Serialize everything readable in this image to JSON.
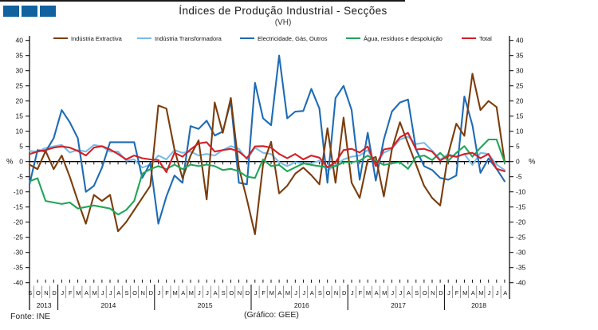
{
  "header": {
    "title": "Índices de Produção Industrial - Secções",
    "subtitle": "(VH)"
  },
  "logo": {
    "color": "#11629E",
    "squares": 3
  },
  "footer": {
    "source": "Fonte: INE",
    "credit": "(Gráfico: GEE)"
  },
  "chart_data": {
    "type": "line",
    "title": "Índices de Produção Industrial - Secções",
    "subtitle": "(VH)",
    "ylabel": "%",
    "ylim": [
      -40,
      40
    ],
    "ytick_step": 5,
    "grid": false,
    "legend_position": "top",
    "x_months": [
      "S",
      "O",
      "N",
      "D",
      "J",
      "F",
      "M",
      "A",
      "M",
      "J",
      "J",
      "A",
      "S",
      "O",
      "N",
      "D",
      "J",
      "F",
      "M",
      "A",
      "M",
      "J",
      "J",
      "A",
      "S",
      "O",
      "N",
      "D",
      "J",
      "F",
      "M",
      "A",
      "M",
      "J",
      "J",
      "A",
      "S",
      "O",
      "N",
      "D",
      "J",
      "F",
      "M",
      "A",
      "M",
      "J",
      "J",
      "A",
      "S",
      "O",
      "N",
      "D",
      "J",
      "F",
      "M",
      "A",
      "M",
      "J",
      "J",
      "A"
    ],
    "year_groups": [
      {
        "label": "2013",
        "start": 0,
        "count": 4
      },
      {
        "label": "2014",
        "start": 4,
        "count": 12
      },
      {
        "label": "2015",
        "start": 16,
        "count": 12
      },
      {
        "label": "2016",
        "start": 28,
        "count": 12
      },
      {
        "label": "2017",
        "start": 40,
        "count": 12
      },
      {
        "label": "2018",
        "start": 52,
        "count": 8
      }
    ],
    "series": [
      {
        "name": "Indústria Extractiva",
        "color": "#7B3D0C",
        "values": [
          -1,
          -2.5,
          3.5,
          -2.5,
          2,
          -5,
          -13,
          -20.5,
          -11,
          -13,
          -11,
          -23,
          -20,
          -16,
          -12,
          -8,
          18.5,
          17.5,
          4,
          -5.5,
          2,
          7,
          -12.5,
          19.5,
          9.5,
          21,
          -2,
          -12.5,
          -24,
          -1,
          6.5,
          -10.5,
          -8,
          -4,
          -2,
          -4.5,
          -7.5,
          11,
          -7,
          14.5,
          -7,
          -12,
          0.5,
          1.5,
          -11.5,
          4,
          13,
          6,
          -1,
          -8,
          -12,
          -14.5,
          2.5,
          12.5,
          8.5,
          29,
          17,
          20,
          18,
          0
        ]
      },
      {
        "name": "Indústria Transformadora",
        "color": "#79BDE8",
        "values": [
          3.5,
          3.3,
          4.5,
          5,
          5.5,
          3,
          3.8,
          3.3,
          5.5,
          5,
          3.3,
          3.3,
          0.3,
          0.7,
          -2,
          -1,
          2,
          0.7,
          3.8,
          2.9,
          3.3,
          2,
          2.5,
          2,
          3.8,
          5.1,
          4.2,
          0.7,
          4.6,
          2.9,
          2.5,
          -0.2,
          -1.5,
          -0.2,
          -0.6,
          -0.6,
          0.3,
          -3,
          -1.1,
          0.7,
          1.6,
          2,
          3.8,
          -1.1,
          2.9,
          4.2,
          7.3,
          8.2,
          5.8,
          6.2,
          3.6,
          0.7,
          2.5,
          1.5,
          2.5,
          -1.1,
          2.9,
          2.5,
          -1,
          -2.8
        ]
      },
      {
        "name": "Electricidade, Gás, Outros",
        "color": "#1F6BB4",
        "values": [
          -7.5,
          3.8,
          3.3,
          7.7,
          17,
          13,
          7.7,
          -10,
          -8,
          -2,
          6.4,
          6.4,
          6.4,
          6.4,
          -5.4,
          -0.5,
          -20.5,
          -11.5,
          -4.6,
          -7,
          11.7,
          10.8,
          13.5,
          8.6,
          9.9,
          20,
          -7,
          -7.5,
          26,
          14.3,
          12,
          35,
          14.3,
          16.5,
          16.7,
          24,
          17.5,
          -7,
          21,
          25,
          17,
          -6,
          9.5,
          -6.3,
          7.3,
          16.5,
          19.5,
          20.5,
          4,
          -1.5,
          -2.8,
          -5.4,
          -6,
          -4.6,
          21.5,
          12,
          -3.7,
          1,
          -2.4,
          -6.5
        ]
      },
      {
        "name": "Água, resíduos e despoluição",
        "color": "#21A558",
        "values": [
          -6.5,
          -5.5,
          -13,
          -13.5,
          -14,
          -13.5,
          -15.5,
          -15,
          -14.5,
          -15,
          -15.5,
          -17.5,
          -16,
          -13,
          -4,
          -2.5,
          -1.5,
          -2.5,
          -1,
          -2.5,
          -1,
          -1.5,
          -1,
          -1.5,
          -2.8,
          -2.4,
          -3.2,
          -5,
          -5.4,
          0.7,
          -1.5,
          -1.1,
          -3.2,
          -1.9,
          -0.6,
          -1.1,
          -1.5,
          -1.9,
          -1.5,
          -0.2,
          -0.2,
          0.3,
          2,
          0.3,
          -1.1,
          -0.6,
          -0.2,
          -2.4,
          1.5,
          2,
          0.5,
          2.9,
          0.3,
          2.9,
          5.1,
          1.6,
          4.6,
          7.3,
          7.3,
          -0.2
        ]
      },
      {
        "name": "Total",
        "color": "#D41F26",
        "values": [
          2.5,
          3.3,
          3.8,
          4.6,
          5,
          4.6,
          3.5,
          2,
          4.6,
          5.1,
          4,
          2.5,
          0.7,
          2,
          1.1,
          0.7,
          0.5,
          -3.5,
          2.9,
          1.6,
          4,
          6,
          6.4,
          3.3,
          3.8,
          4.2,
          3.3,
          1.1,
          5,
          5.1,
          4.6,
          2.5,
          1.1,
          2.5,
          0.7,
          2,
          1.3,
          -1.9,
          -0.2,
          3.8,
          4.2,
          3,
          5,
          -1.5,
          4,
          4.5,
          8,
          9.5,
          4,
          4.2,
          3.3,
          0.3,
          2,
          1.6,
          2.5,
          2.9,
          1.1,
          2.5,
          -2.4,
          -3.2
        ]
      }
    ]
  }
}
